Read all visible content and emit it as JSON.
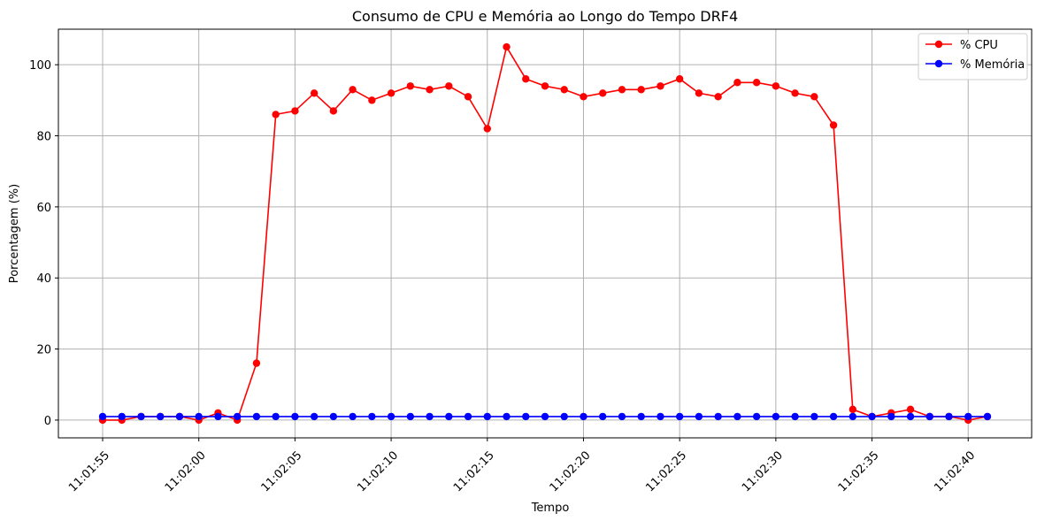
{
  "chart_data": {
    "type": "line",
    "title": "Consumo de CPU e Memória ao Longo do Tempo DRF4",
    "xlabel": "Tempo",
    "ylabel": "Porcentagem (%)",
    "x": [
      "11:01:55",
      "11:01:56",
      "11:01:57",
      "11:01:58",
      "11:01:59",
      "11:02:00",
      "11:02:01",
      "11:02:02",
      "11:02:03",
      "11:02:04",
      "11:02:05",
      "11:02:06",
      "11:02:07",
      "11:02:08",
      "11:02:09",
      "11:02:10",
      "11:02:11",
      "11:02:12",
      "11:02:13",
      "11:02:14",
      "11:02:15",
      "11:02:16",
      "11:02:17",
      "11:02:18",
      "11:02:19",
      "11:02:20",
      "11:02:21",
      "11:02:22",
      "11:02:23",
      "11:02:24",
      "11:02:25",
      "11:02:26",
      "11:02:27",
      "11:02:28",
      "11:02:29",
      "11:02:30",
      "11:02:31",
      "11:02:32",
      "11:02:33",
      "11:02:34",
      "11:02:35",
      "11:02:36",
      "11:02:37",
      "11:02:38",
      "11:02:39",
      "11:02:40",
      "11:02:41"
    ],
    "x_ticks": [
      "11:01:55",
      "11:02:00",
      "11:02:05",
      "11:02:10",
      "11:02:15",
      "11:02:20",
      "11:02:25",
      "11:02:30",
      "11:02:35",
      "11:02:40"
    ],
    "y_ticks": [
      0,
      20,
      40,
      60,
      80,
      100
    ],
    "ylim": [
      -5,
      110
    ],
    "grid": true,
    "legend_position": "top-right",
    "series": [
      {
        "name": "% CPU",
        "color": "#ff0000",
        "values": [
          0,
          0,
          1,
          1,
          1,
          0,
          2,
          0,
          16,
          86,
          87,
          92,
          87,
          93,
          90,
          92,
          94,
          93,
          94,
          91,
          82,
          105,
          96,
          94,
          93,
          91,
          92,
          93,
          93,
          94,
          96,
          92,
          91,
          95,
          95,
          94,
          92,
          91,
          83,
          3,
          1,
          2,
          3,
          1,
          1,
          0,
          1
        ]
      },
      {
        "name": "% Memória",
        "color": "#0000ff",
        "values": [
          1,
          1,
          1,
          1,
          1,
          1,
          1,
          1,
          1,
          1,
          1,
          1,
          1,
          1,
          1,
          1,
          1,
          1,
          1,
          1,
          1,
          1,
          1,
          1,
          1,
          1,
          1,
          1,
          1,
          1,
          1,
          1,
          1,
          1,
          1,
          1,
          1,
          1,
          1,
          1,
          1,
          1,
          1,
          1,
          1,
          1,
          1
        ]
      }
    ]
  }
}
